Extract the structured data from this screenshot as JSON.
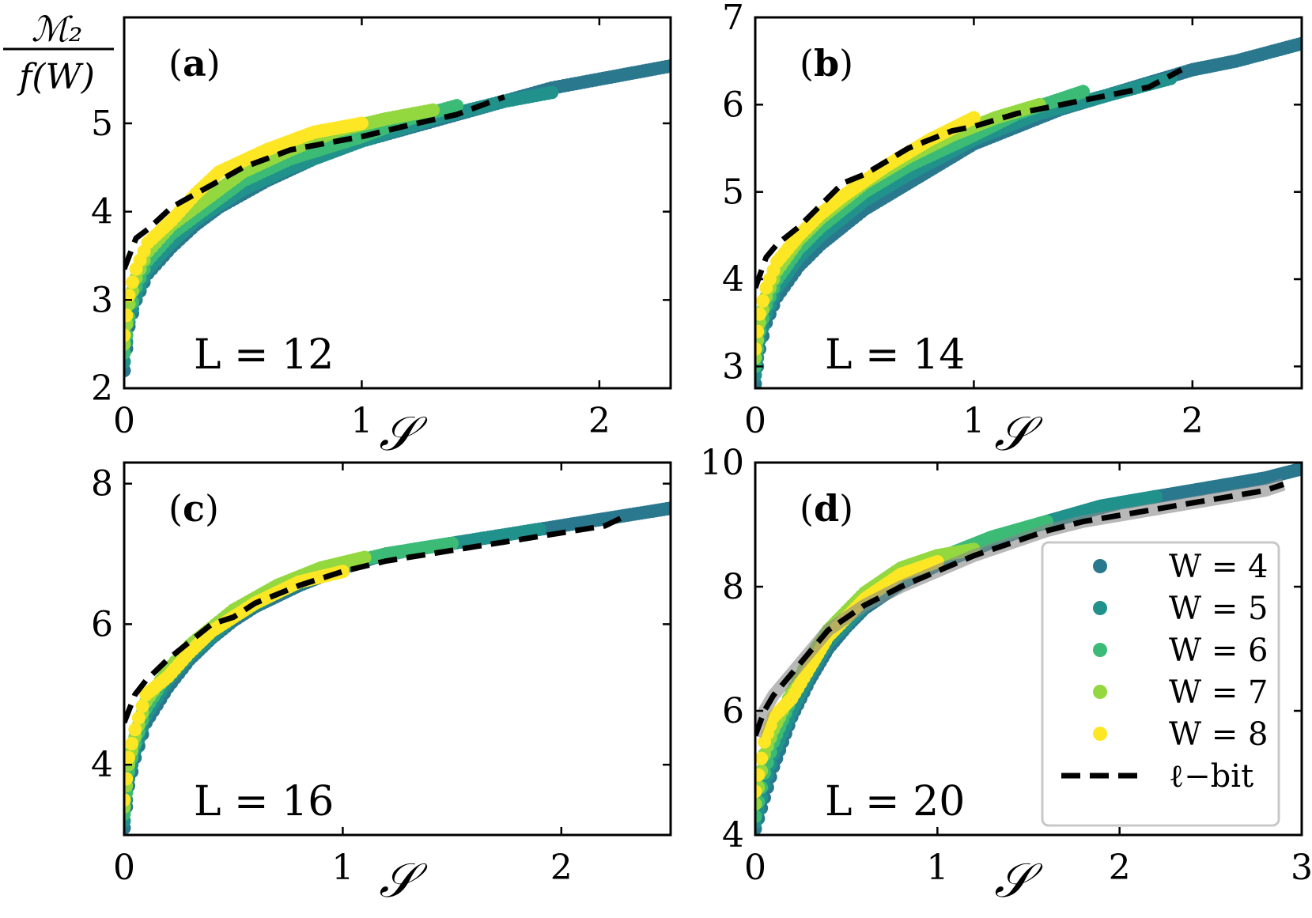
{
  "ylabel": {
    "numerator": "ℳ₂",
    "denominator": "f(W)"
  },
  "xlabel": "𝒮",
  "legend": {
    "entries": [
      "W = 4",
      "W = 5",
      "W = 6",
      "W = 7",
      "W = 8",
      "ℓ−bit"
    ],
    "placement": "lower-right of panel (d)"
  },
  "colors": {
    "W=4": "#2a788e",
    "W=5": "#21918c",
    "W=6": "#3bbb75",
    "W=7": "#94d840",
    "W=8": "#fde725",
    "lbit": "#000000"
  },
  "chart_data": [
    {
      "type": "scatter",
      "panel": "(a)",
      "annotation": "L = 12",
      "xlim": [
        0,
        2.3
      ],
      "ylim": [
        2,
        6.2
      ],
      "xticks": [
        0,
        1,
        2
      ],
      "yticks": [
        2,
        3,
        4,
        5
      ],
      "series": [
        {
          "name": "W = 4",
          "x": [
            0.0,
            0.02,
            0.05,
            0.1,
            0.2,
            0.3,
            0.4,
            0.5,
            0.6,
            0.8,
            1.0,
            1.2,
            1.4,
            1.6,
            1.8,
            2.0,
            2.2,
            2.3
          ],
          "y": [
            2.2,
            2.7,
            3.0,
            3.3,
            3.6,
            3.85,
            4.05,
            4.2,
            4.35,
            4.6,
            4.8,
            4.95,
            5.1,
            5.25,
            5.4,
            5.5,
            5.6,
            5.65
          ]
        },
        {
          "name": "W = 5",
          "x": [
            0.0,
            0.02,
            0.05,
            0.1,
            0.2,
            0.3,
            0.5,
            0.7,
            1.0,
            1.3,
            1.6,
            1.8
          ],
          "y": [
            2.3,
            2.75,
            3.05,
            3.35,
            3.65,
            3.9,
            4.25,
            4.5,
            4.8,
            5.05,
            5.25,
            5.35
          ]
        },
        {
          "name": "W = 6",
          "x": [
            0.0,
            0.02,
            0.05,
            0.1,
            0.2,
            0.3,
            0.5,
            0.7,
            1.0,
            1.2,
            1.4
          ],
          "y": [
            2.4,
            2.8,
            3.15,
            3.45,
            3.75,
            3.95,
            4.35,
            4.6,
            4.85,
            5.05,
            5.2
          ]
        },
        {
          "name": "W = 7",
          "x": [
            0.0,
            0.02,
            0.05,
            0.1,
            0.2,
            0.3,
            0.5,
            0.7,
            0.9,
            1.1,
            1.3
          ],
          "y": [
            2.5,
            2.95,
            3.25,
            3.55,
            3.85,
            4.05,
            4.45,
            4.7,
            4.92,
            5.05,
            5.15
          ]
        },
        {
          "name": "W = 8",
          "x": [
            0.0,
            0.02,
            0.05,
            0.1,
            0.2,
            0.3,
            0.4,
            0.6,
            0.8,
            1.0
          ],
          "y": [
            2.6,
            3.05,
            3.35,
            3.65,
            3.9,
            4.2,
            4.45,
            4.7,
            4.9,
            5.0
          ]
        },
        {
          "name": "ℓ−bit",
          "x": [
            0.0,
            0.05,
            0.1,
            0.2,
            0.3,
            0.4,
            0.5,
            0.6,
            0.7,
            0.8,
            0.9,
            1.0,
            1.2,
            1.4,
            1.6
          ],
          "y": [
            3.35,
            3.7,
            3.8,
            4.05,
            4.2,
            4.35,
            4.5,
            4.6,
            4.7,
            4.75,
            4.8,
            4.85,
            4.98,
            5.1,
            5.3
          ]
        }
      ]
    },
    {
      "type": "scatter",
      "panel": "(b)",
      "annotation": "L = 14",
      "xlim": [
        0,
        2.5
      ],
      "ylim": [
        2.75,
        7
      ],
      "xticks": [
        0,
        1,
        2
      ],
      "yticks": [
        3,
        4,
        5,
        6,
        7
      ],
      "series": [
        {
          "name": "W = 4",
          "x": [
            0.0,
            0.02,
            0.05,
            0.1,
            0.2,
            0.3,
            0.4,
            0.5,
            0.6,
            0.8,
            1.0,
            1.2,
            1.4,
            1.6,
            1.8,
            2.0,
            2.2,
            2.5
          ],
          "y": [
            2.8,
            3.2,
            3.5,
            3.8,
            4.15,
            4.4,
            4.6,
            4.8,
            4.95,
            5.25,
            5.55,
            5.75,
            5.95,
            6.1,
            6.25,
            6.4,
            6.5,
            6.7
          ]
        },
        {
          "name": "W = 5",
          "x": [
            0.0,
            0.02,
            0.05,
            0.1,
            0.2,
            0.3,
            0.5,
            0.7,
            1.0,
            1.3,
            1.6,
            1.9
          ],
          "y": [
            2.9,
            3.3,
            3.6,
            3.9,
            4.25,
            4.5,
            4.9,
            5.2,
            5.6,
            5.9,
            6.1,
            6.3
          ]
        },
        {
          "name": "W = 6",
          "x": [
            0.0,
            0.02,
            0.05,
            0.1,
            0.2,
            0.3,
            0.5,
            0.7,
            1.0,
            1.2,
            1.5
          ],
          "y": [
            3.0,
            3.4,
            3.7,
            4.0,
            4.35,
            4.6,
            5.0,
            5.3,
            5.65,
            5.9,
            6.15
          ]
        },
        {
          "name": "W = 7",
          "x": [
            0.0,
            0.02,
            0.05,
            0.1,
            0.2,
            0.3,
            0.5,
            0.7,
            0.9,
            1.1,
            1.3
          ],
          "y": [
            3.1,
            3.5,
            3.8,
            4.1,
            4.45,
            4.7,
            5.1,
            5.4,
            5.65,
            5.85,
            6.0
          ]
        },
        {
          "name": "W = 8",
          "x": [
            0.0,
            0.02,
            0.05,
            0.1,
            0.2,
            0.3,
            0.4,
            0.6,
            0.8,
            1.0
          ],
          "y": [
            3.2,
            3.6,
            3.9,
            4.2,
            4.5,
            4.75,
            4.95,
            5.3,
            5.6,
            5.85
          ]
        },
        {
          "name": "ℓ−bit",
          "x": [
            0.0,
            0.05,
            0.1,
            0.2,
            0.3,
            0.4,
            0.5,
            0.6,
            0.7,
            0.8,
            0.9,
            1.0,
            1.2,
            1.4,
            1.6,
            1.8,
            1.95
          ],
          "y": [
            3.9,
            4.25,
            4.4,
            4.6,
            4.85,
            5.1,
            5.2,
            5.35,
            5.5,
            5.6,
            5.7,
            5.75,
            5.9,
            6.0,
            6.1,
            6.2,
            6.4
          ]
        }
      ]
    },
    {
      "type": "scatter",
      "panel": "(c)",
      "annotation": "L = 16",
      "xlim": [
        0,
        2.5
      ],
      "ylim": [
        3,
        8.3
      ],
      "xticks": [
        0,
        1,
        2
      ],
      "yticks": [
        4,
        6,
        8
      ],
      "series": [
        {
          "name": "W = 4",
          "x": [
            0.0,
            0.02,
            0.05,
            0.1,
            0.2,
            0.3,
            0.4,
            0.5,
            0.6,
            0.8,
            1.0,
            1.2,
            1.4,
            1.6,
            1.8,
            2.0,
            2.2,
            2.5
          ],
          "y": [
            3.1,
            3.7,
            4.1,
            4.6,
            5.1,
            5.5,
            5.8,
            6.05,
            6.25,
            6.55,
            6.8,
            7.0,
            7.1,
            7.2,
            7.3,
            7.4,
            7.5,
            7.65
          ]
        },
        {
          "name": "W = 5",
          "x": [
            0.0,
            0.02,
            0.05,
            0.1,
            0.2,
            0.3,
            0.5,
            0.7,
            1.0,
            1.3,
            1.6,
            1.9
          ],
          "y": [
            3.2,
            3.8,
            4.2,
            4.7,
            5.2,
            5.55,
            6.1,
            6.45,
            6.85,
            7.05,
            7.2,
            7.35
          ]
        },
        {
          "name": "W = 6",
          "x": [
            0.0,
            0.02,
            0.05,
            0.1,
            0.2,
            0.3,
            0.5,
            0.7,
            1.0,
            1.2,
            1.5
          ],
          "y": [
            3.3,
            3.9,
            4.3,
            4.8,
            5.3,
            5.65,
            6.15,
            6.5,
            6.85,
            7.0,
            7.15
          ]
        },
        {
          "name": "W = 7",
          "x": [
            0.0,
            0.02,
            0.05,
            0.1,
            0.2,
            0.3,
            0.5,
            0.7,
            0.9,
            1.1
          ],
          "y": [
            3.4,
            4.0,
            4.4,
            4.9,
            5.35,
            5.7,
            6.2,
            6.55,
            6.8,
            6.95
          ]
        },
        {
          "name": "W = 8",
          "x": [
            0.0,
            0.02,
            0.05,
            0.1,
            0.2,
            0.3,
            0.4,
            0.6,
            0.8,
            1.0
          ],
          "y": [
            3.5,
            4.1,
            4.5,
            5.0,
            5.25,
            5.6,
            5.9,
            6.3,
            6.6,
            6.75
          ]
        },
        {
          "name": "ℓ−bit",
          "x": [
            0.0,
            0.05,
            0.1,
            0.2,
            0.3,
            0.4,
            0.5,
            0.6,
            0.8,
            1.0,
            1.2,
            1.4,
            1.6,
            1.8,
            2.0,
            2.2,
            2.3
          ],
          "y": [
            4.6,
            5.0,
            5.2,
            5.5,
            5.75,
            6.0,
            6.1,
            6.3,
            6.55,
            6.75,
            6.9,
            7.0,
            7.1,
            7.2,
            7.3,
            7.4,
            7.55
          ]
        }
      ]
    },
    {
      "type": "scatter",
      "panel": "(d)",
      "annotation": "L = 20",
      "xlim": [
        0,
        3
      ],
      "ylim": [
        4,
        10
      ],
      "xticks": [
        0,
        1,
        2,
        3
      ],
      "yticks": [
        4,
        6,
        8,
        10
      ],
      "series": [
        {
          "name": "W = 4",
          "x": [
            0.0,
            0.05,
            0.1,
            0.2,
            0.3,
            0.4,
            0.5,
            0.6,
            0.8,
            1.0,
            1.2,
            1.5,
            1.8,
            2.0,
            2.2,
            2.5,
            2.8,
            3.0
          ],
          "y": [
            4.1,
            4.6,
            5.1,
            5.9,
            6.5,
            7.0,
            7.35,
            7.65,
            8.05,
            8.35,
            8.6,
            8.95,
            9.2,
            9.35,
            9.45,
            9.6,
            9.75,
            9.9
          ]
        },
        {
          "name": "W = 5",
          "x": [
            0.0,
            0.05,
            0.1,
            0.2,
            0.3,
            0.4,
            0.6,
            0.8,
            1.0,
            1.3,
            1.6,
            1.9,
            2.2
          ],
          "y": [
            4.2,
            4.8,
            5.3,
            6.0,
            6.6,
            7.1,
            7.7,
            8.1,
            8.4,
            8.75,
            9.05,
            9.3,
            9.45
          ]
        },
        {
          "name": "W = 6",
          "x": [
            0.0,
            0.05,
            0.1,
            0.2,
            0.3,
            0.4,
            0.6,
            0.8,
            1.0,
            1.3,
            1.6
          ],
          "y": [
            4.3,
            5.0,
            5.5,
            6.2,
            6.75,
            7.2,
            7.8,
            8.2,
            8.45,
            8.8,
            9.05
          ]
        },
        {
          "name": "W = 7",
          "x": [
            0.0,
            0.05,
            0.1,
            0.2,
            0.3,
            0.4,
            0.6,
            0.8,
            1.0,
            1.2
          ],
          "y": [
            4.5,
            5.3,
            5.7,
            6.3,
            6.85,
            7.3,
            7.9,
            8.3,
            8.5,
            8.6
          ]
        },
        {
          "name": "W = 8",
          "x": [
            0.0,
            0.05,
            0.1,
            0.2,
            0.3,
            0.4,
            0.6,
            0.8,
            1.0
          ],
          "y": [
            4.7,
            5.5,
            5.9,
            6.2,
            6.7,
            7.2,
            7.8,
            8.2,
            8.4
          ]
        },
        {
          "name": "ℓ−bit",
          "x": [
            0.0,
            0.05,
            0.1,
            0.2,
            0.3,
            0.4,
            0.5,
            0.6,
            0.8,
            1.0,
            1.2,
            1.4,
            1.6,
            1.8,
            2.0,
            2.2,
            2.4,
            2.6,
            2.8,
            2.9
          ],
          "y": [
            5.6,
            6.0,
            6.25,
            6.6,
            6.95,
            7.3,
            7.5,
            7.7,
            8.0,
            8.25,
            8.5,
            8.7,
            8.9,
            9.05,
            9.15,
            9.25,
            9.35,
            9.45,
            9.55,
            9.65
          ]
        }
      ]
    }
  ]
}
